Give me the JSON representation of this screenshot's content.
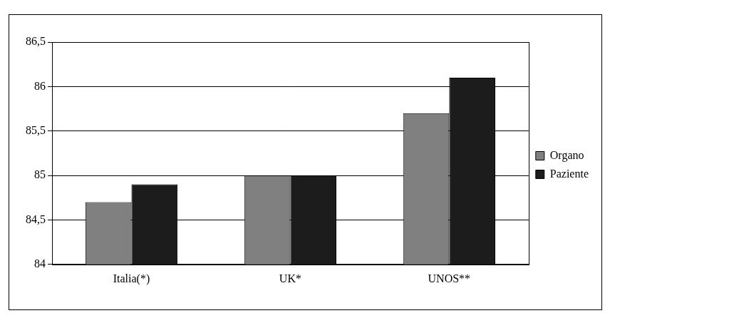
{
  "chart_data": {
    "type": "bar",
    "categories": [
      "Italia(*)",
      "UK*",
      "UNOS**"
    ],
    "series": [
      {
        "name": "Organo",
        "color": "#808080",
        "values": [
          84.7,
          85.0,
          85.7
        ]
      },
      {
        "name": "Paziente",
        "color": "#1c1c1c",
        "values": [
          84.9,
          85.0,
          86.1
        ]
      }
    ],
    "ylim": [
      84,
      86.5
    ],
    "yticks": [
      84,
      {
        "value": 84.5,
        "label": "84,5"
      },
      85,
      {
        "value": 85.5,
        "label": "85,5"
      },
      86,
      {
        "value": 86.5,
        "label": "86,5"
      }
    ],
    "grid": true,
    "legend": "right"
  }
}
